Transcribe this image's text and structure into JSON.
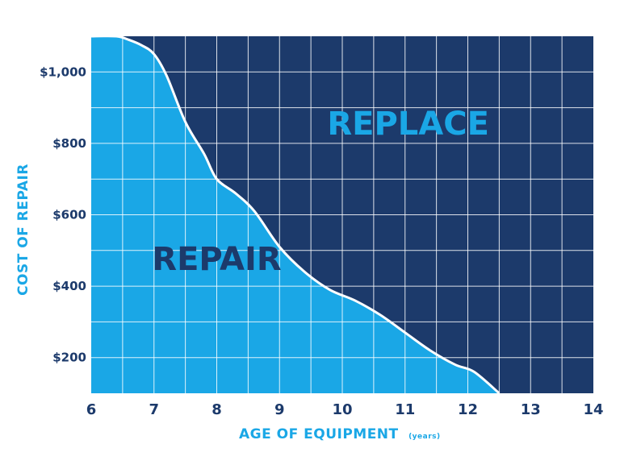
{
  "chart_data": {
    "type": "area",
    "xlabel": "AGE OF EQUIPMENT",
    "xlabel_unit": "(years)",
    "ylabel": "COST OF REPAIR",
    "xlim": [
      6,
      14
    ],
    "ylim": [
      100,
      1100
    ],
    "x_ticks": [
      "6",
      "7",
      "8",
      "9",
      "10",
      "11",
      "12",
      "13",
      "14"
    ],
    "x_tick_values": [
      6,
      7,
      8,
      9,
      10,
      11,
      12,
      13,
      14
    ],
    "y_ticks": [
      "$200",
      "$400",
      "$600",
      "$800",
      "$1,000"
    ],
    "y_tick_values": [
      200,
      400,
      600,
      800,
      1000
    ],
    "grid": true,
    "series": [
      {
        "x": [
          6.0,
          6.4,
          6.6,
          6.8,
          7.0,
          7.2,
          7.5,
          7.8,
          8.0,
          8.3,
          8.6,
          9.0,
          9.4,
          9.8,
          10.2,
          10.6,
          11.0,
          11.4,
          11.8,
          12.1,
          12.5
        ],
        "values": [
          1100,
          1100,
          1090,
          1075,
          1050,
          990,
          860,
          770,
          700,
          660,
          610,
          510,
          440,
          390,
          360,
          320,
          270,
          220,
          180,
          160,
          100
        ]
      }
    ],
    "regions": [
      {
        "label": "REPLACE",
        "side": "above",
        "color": "#1c3a6b",
        "label_color": "#1aa7e6"
      },
      {
        "label": "REPAIR",
        "side": "below",
        "color": "#1aa7e6",
        "label_color": "#1c3a6b"
      }
    ],
    "region_label_positions": {
      "REPLACE": [
        11.05,
        825
      ],
      "REPAIR": [
        8.0,
        445
      ]
    },
    "colors": {
      "above": "#1c3a6b",
      "below": "#1aa7e6",
      "grid": "#ffffff",
      "axis_text": "#1c3a6b",
      "label_text": "#1aa7e6"
    }
  }
}
